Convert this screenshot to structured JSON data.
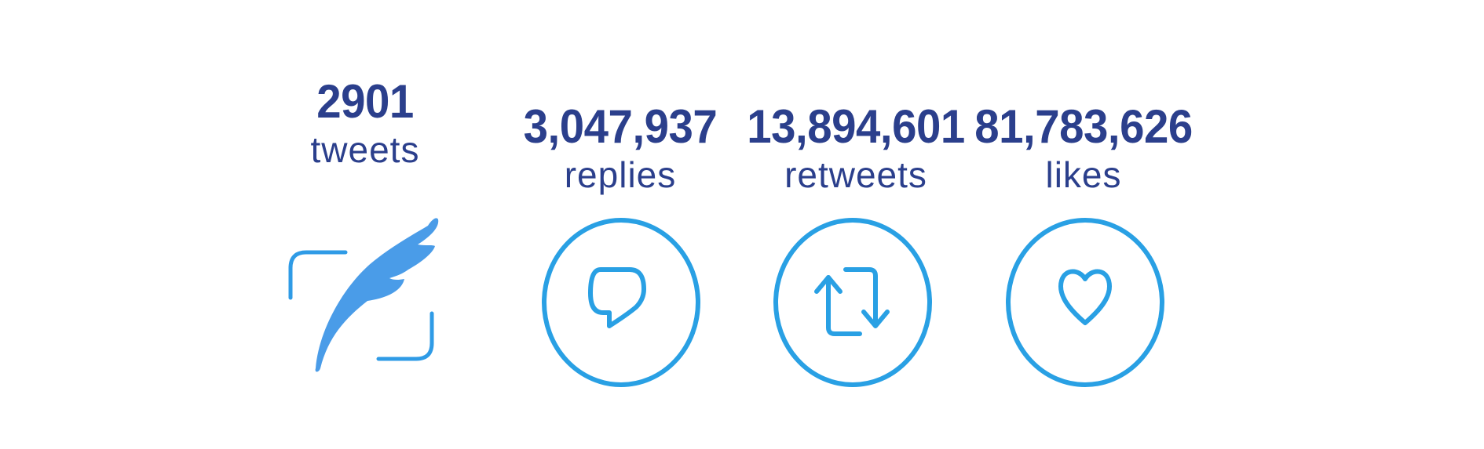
{
  "stats": {
    "tweets": {
      "value": "2901",
      "label": "tweets"
    },
    "replies": {
      "value": "3,047,937",
      "label": "replies"
    },
    "retweets": {
      "value": "13,894,601",
      "label": "retweets"
    },
    "likes": {
      "value": "81,783,626",
      "label": "likes"
    }
  },
  "icons": [
    "quill-icon",
    "reply-icon",
    "retweet-icon",
    "heart-icon"
  ],
  "colors": {
    "text": "#2b3f8c",
    "icon_stroke": "#29a0e4",
    "quill_fill": "#4a9ce8"
  }
}
